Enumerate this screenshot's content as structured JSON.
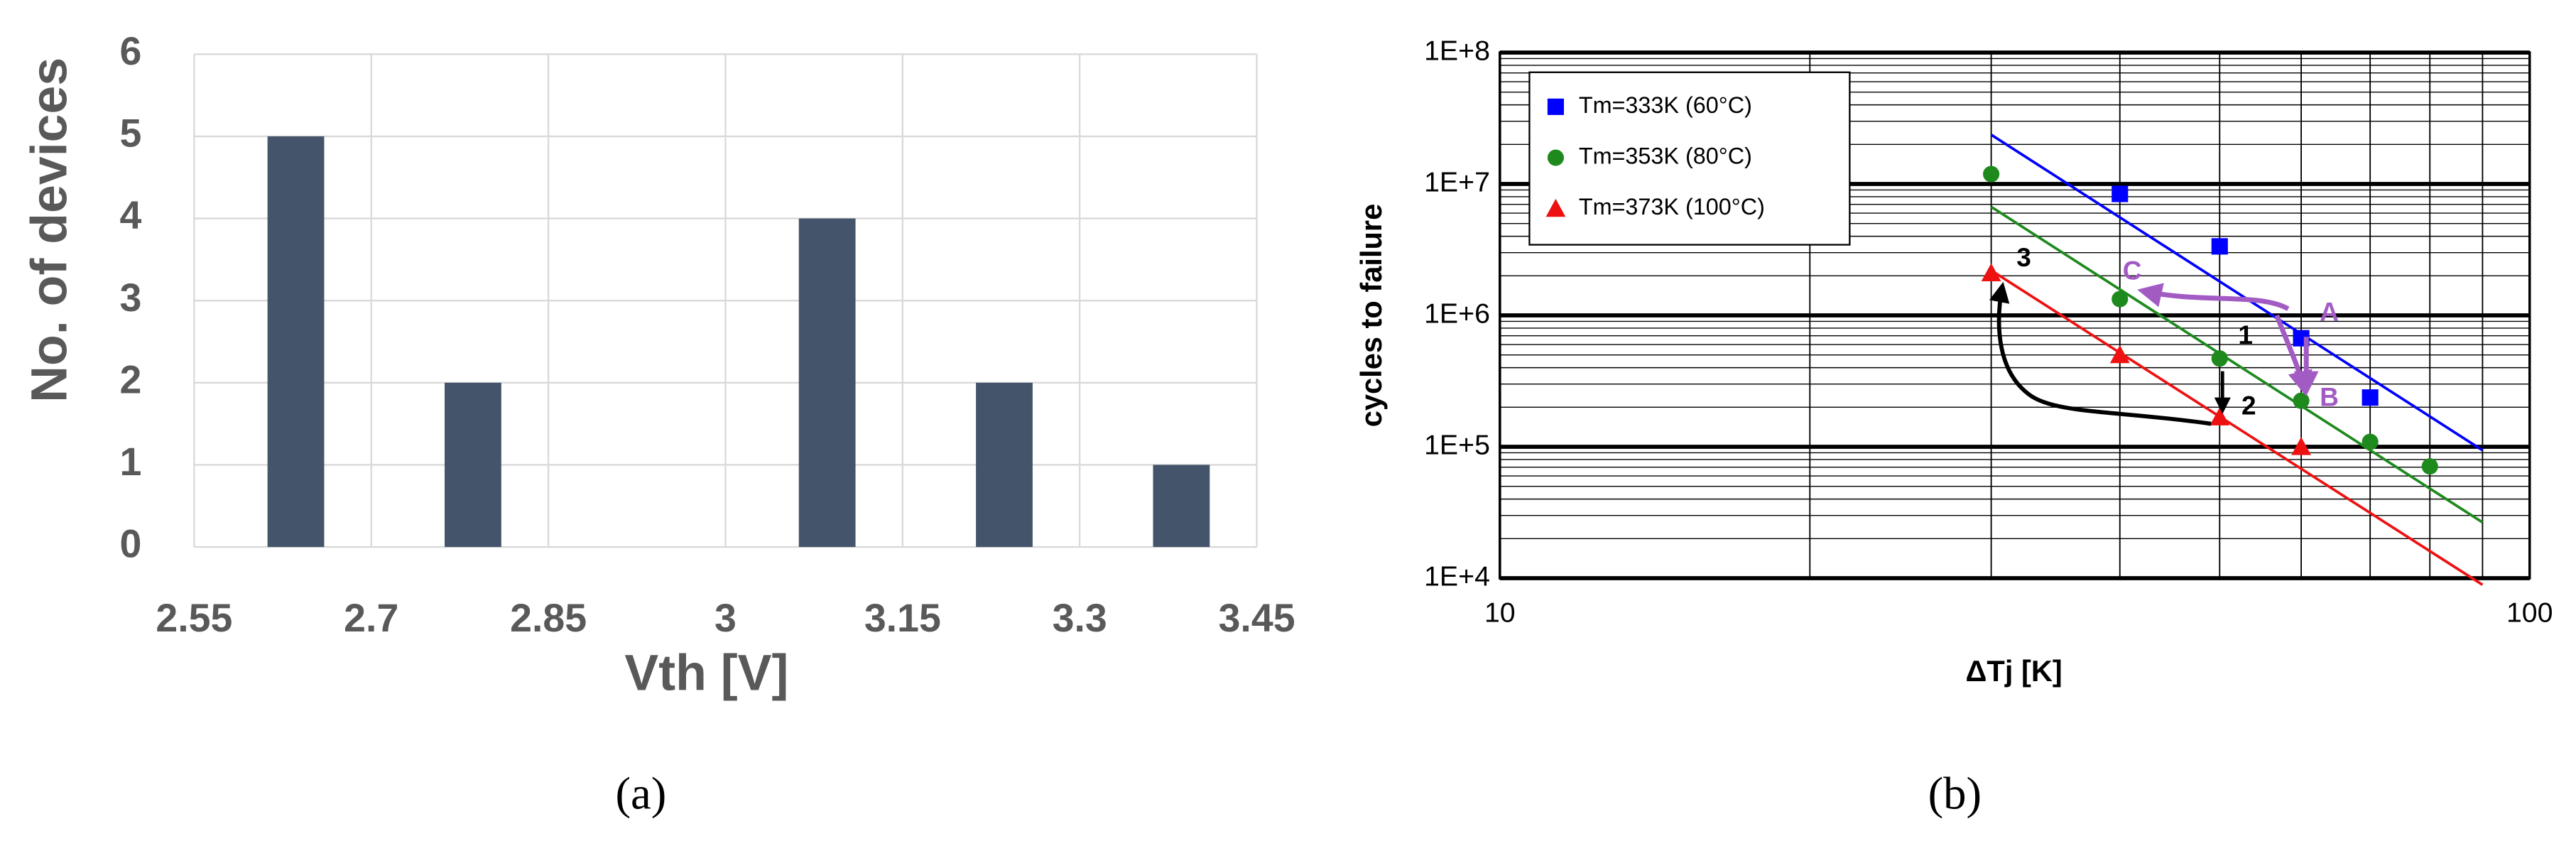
{
  "chart_data": [
    {
      "type": "histogram",
      "bins": [
        2.55,
        2.7,
        2.85,
        3,
        3.15,
        3.3,
        3.45
      ],
      "values": [
        5,
        2,
        0,
        4,
        2,
        1
      ],
      "color": "#44546a",
      "xlim": [
        2.55,
        3.45
      ],
      "xticks": [
        2.55,
        2.7,
        2.85,
        3,
        3.15,
        3.3,
        3.45
      ],
      "ylim": [
        0,
        6
      ],
      "yticks": [
        0,
        1,
        2,
        3,
        4,
        5,
        6
      ],
      "xlabel": "Vth  [V]",
      "ylabel": "No. of devices",
      "panel_label": "(a)",
      "grid": true
    },
    {
      "type": "scatter",
      "log_x": true,
      "log_y": true,
      "grid": true,
      "minor_grid": true,
      "legend": "upper left",
      "xlim": [
        10,
        100
      ],
      "xticks": [
        10,
        100
      ],
      "ylim": [
        10000,
        100000000
      ],
      "yticks": [
        {
          "value": 10000,
          "label": "1E+4"
        },
        {
          "value": 100000,
          "label": "1E+5"
        },
        {
          "value": 1000000,
          "label": "1E+6"
        },
        {
          "value": 10000000,
          "label": "1E+7"
        },
        {
          "value": 100000000,
          "label": "1E+8"
        }
      ],
      "xlabel": "ΔTj  [K]",
      "ylabel": "cycles to failure",
      "panel_label": "(b)",
      "series": [
        {
          "name": "Tm=333K  (60°C)",
          "color": "#0000ff",
          "marker": "square",
          "x": [
            40,
            50,
            60,
            70
          ],
          "values": [
            8400000,
            3350000,
            670000,
            237000
          ],
          "fit": {
            "x": [
              30,
              90
            ],
            "values": [
              23700000,
              94000
            ]
          }
        },
        {
          "name": "Tm=353K  (80°C)",
          "color": "#1e8a1e",
          "marker": "circle",
          "x": [
            30,
            40,
            50,
            60,
            70,
            80
          ],
          "values": [
            11900000,
            1330000,
            470000,
            224000,
            109000,
            71000
          ],
          "fit": {
            "x": [
              30,
              90
            ],
            "values": [
              6700000,
              26600
            ]
          }
        },
        {
          "name": "Tm=373K  (100°C)",
          "color": "#ee1111",
          "marker": "triangle",
          "x": [
            30,
            40,
            50,
            60
          ],
          "values": [
            2100000,
            500000,
            168000,
            100000
          ],
          "fit": {
            "x": [
              30,
              90
            ],
            "values": [
              2200000,
              8900
            ]
          }
        }
      ],
      "annotations": [
        "A",
        "B",
        "C",
        "1",
        "2",
        "3"
      ]
    }
  ]
}
